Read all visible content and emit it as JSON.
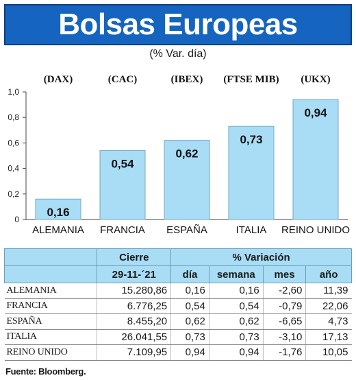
{
  "title": "Bolsas Europeas",
  "subtitle": "(% Var. día)",
  "chart_data": {
    "type": "bar",
    "categories": [
      "ALEMANIA",
      "FRANCIA",
      "ESPAÑA",
      "ITALIA",
      "REINO UNIDO"
    ],
    "indices": [
      "(DAX)",
      "(CAC)",
      "(IBEX)",
      "(FTSE MIB)",
      "(UKX)"
    ],
    "values": [
      0.16,
      0.54,
      0.62,
      0.73,
      0.94
    ],
    "value_labels": [
      "0,16",
      "0,54",
      "0,62",
      "0,73",
      "0,94"
    ],
    "ylim": [
      0,
      1.0
    ],
    "yticks": [
      0,
      0.2,
      0.4,
      0.6,
      0.8,
      1.0
    ],
    "ytick_labels": [
      "0",
      "0,2",
      "0,4",
      "0,6",
      "0,8",
      "1,0"
    ],
    "grid": false,
    "bar_color": "#a8ddf5",
    "bar_edge_color": "#6fa9c6"
  },
  "table": {
    "header_cierre": "Cierre",
    "header_variacion": "% Variación",
    "date": "29-11-´21",
    "columns": [
      "día",
      "semana",
      "mes",
      "año"
    ],
    "rows": [
      {
        "country": "ALEMANIA",
        "close": "15.280,86",
        "dia": "0,16",
        "semana": "0,16",
        "mes": "-2,60",
        "anio": "11,39"
      },
      {
        "country": "FRANCIA",
        "close": "6.776,25",
        "dia": "0,54",
        "semana": "0,54",
        "mes": "-0,79",
        "anio": "22,06"
      },
      {
        "country": "ESPAÑA",
        "close": "8.455,20",
        "dia": "0,62",
        "semana": "0,62",
        "mes": "-6,65",
        "anio": "4,73"
      },
      {
        "country": "ITALIA",
        "close": "26.041,55",
        "dia": "0,73",
        "semana": "0,73",
        "mes": "-3,10",
        "anio": "17,13"
      },
      {
        "country": "REINO UNIDO",
        "close": "7.109,95",
        "dia": "0,94",
        "semana": "0,94",
        "mes": "-1,76",
        "anio": "10,05"
      }
    ]
  },
  "source": "Fuente: Bloomberg.",
  "colors": {
    "title_bg": "#1565c0",
    "header_bg": "#a8ddf5"
  }
}
